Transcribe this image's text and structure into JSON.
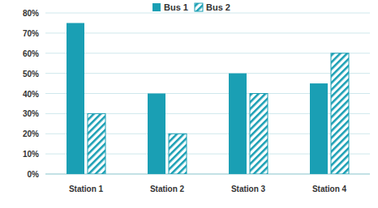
{
  "chart_data": {
    "type": "bar",
    "categories": [
      "Station 1",
      "Station 2",
      "Station 3",
      "Station 4"
    ],
    "series": [
      {
        "name": "Bus 1",
        "color": "#1a9fb4",
        "values": [
          75,
          40,
          50,
          45
        ]
      },
      {
        "name": "Bus 2",
        "color": "#1a9fb4",
        "values": [
          30,
          20,
          40,
          60
        ]
      }
    ],
    "ylim": [
      0,
      80
    ],
    "yticks": [
      {
        "value": 0,
        "label": "0%"
      },
      {
        "value": 10,
        "label": "10%"
      },
      {
        "value": 20,
        "label": "20%"
      },
      {
        "value": 30,
        "label": "30%"
      },
      {
        "value": 40,
        "label": "40%"
      },
      {
        "value": 50,
        "label": "50%"
      },
      {
        "value": 60,
        "label": "60%"
      },
      {
        "value": 70,
        "label": "70%"
      },
      {
        "value": 80,
        "label": "80%"
      }
    ],
    "grid": true,
    "legend": "top"
  }
}
